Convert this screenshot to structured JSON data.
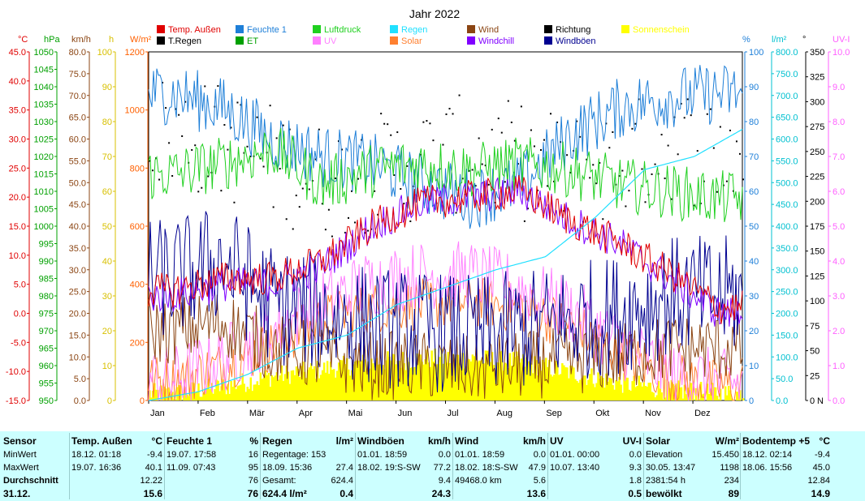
{
  "chart_data": {
    "type": "line",
    "title": "Jahr 2022",
    "months": [
      "Jan",
      "Feb",
      "Mär",
      "Apr",
      "Mai",
      "Jun",
      "Jul",
      "Aug",
      "Sep",
      "Okt",
      "Nov",
      "Dez"
    ],
    "legend": [
      {
        "label": "Temp. Außen",
        "color": "#e00000"
      },
      {
        "label": "T.Regen",
        "color": "#000000"
      },
      {
        "label": "Feuchte 1",
        "color": "#1e7fd8"
      },
      {
        "label": "ET",
        "color": "#00a000"
      },
      {
        "label": "Luftdruck",
        "color": "#20d020"
      },
      {
        "label": "UV",
        "color": "#ff80ff"
      },
      {
        "label": "Regen",
        "color": "#20e0ff"
      },
      {
        "label": "Solar",
        "color": "#ff8030"
      },
      {
        "label": "Wind",
        "color": "#8b4513"
      },
      {
        "label": "Windchill",
        "color": "#8000ff"
      },
      {
        "label": "Richtung",
        "color": "#000000"
      },
      {
        "label": "Windböen",
        "color": "#000090"
      },
      {
        "label": "Sonnenschein",
        "color": "#ffff00"
      }
    ],
    "left_axes": [
      {
        "unit": "°C",
        "color": "#e00000",
        "ticks": [
          "45.0",
          "40.0",
          "35.0",
          "30.0",
          "25.0",
          "20.0",
          "15.0",
          "10.0",
          "5.0",
          "0.0",
          "-5.0",
          "-10.0",
          "-15.0"
        ]
      },
      {
        "unit": "hPa",
        "color": "#00a000",
        "ticks": [
          "1050",
          "1045",
          "1040",
          "1035",
          "1030",
          "1025",
          "1020",
          "1015",
          "1010",
          "1005",
          "1000",
          "995",
          "990",
          "985",
          "980",
          "975",
          "970",
          "965",
          "960",
          "955",
          "950"
        ]
      },
      {
        "unit": "km/h",
        "color": "#8b4513",
        "ticks": [
          "80.0",
          "75.0",
          "70.0",
          "65.0",
          "60.0",
          "55.0",
          "50.0",
          "45.0",
          "40.0",
          "35.0",
          "30.0",
          "25.0",
          "20.0",
          "15.0",
          "10.0",
          "5.0",
          "0.0"
        ]
      },
      {
        "unit": "h",
        "color": "#d8c000",
        "ticks": [
          "100",
          "90",
          "80",
          "70",
          "60",
          "50",
          "40",
          "30",
          "20",
          "10",
          "0"
        ]
      },
      {
        "unit": "W/m²",
        "color": "#ff6000",
        "ticks": [
          "1200",
          "1000",
          "800",
          "600",
          "400",
          "200",
          "0"
        ]
      }
    ],
    "right_axes": [
      {
        "unit": "%",
        "color": "#1e7fd8",
        "ticks": [
          "100",
          "90",
          "80",
          "70",
          "60",
          "50",
          "40",
          "30",
          "20",
          "10",
          "0"
        ]
      },
      {
        "unit": "l/m²",
        "color": "#00c0d0",
        "ticks": [
          "800.0",
          "750.0",
          "700.0",
          "650.0",
          "600.0",
          "550.0",
          "500.0",
          "450.0",
          "400.0",
          "350.0",
          "300.0",
          "250.0",
          "200.0",
          "150.0",
          "100.0",
          "50.0",
          "0.0"
        ]
      },
      {
        "unit": "°",
        "color": "#000000",
        "ticks": [
          "350",
          "325",
          "300",
          "275",
          "250",
          "225",
          "200",
          "175",
          "150",
          "125",
          "100",
          "75",
          "50",
          "25",
          "0"
        ],
        "bottom_label": "N"
      },
      {
        "unit": "UV-I",
        "color": "#ff60ff",
        "ticks": [
          "10.0",
          "9.0",
          "8.0",
          "7.0",
          "6.0",
          "5.0",
          "4.0",
          "3.0",
          "2.0",
          "1.0",
          "0.0"
        ]
      }
    ],
    "series": [
      {
        "name": "Temp. Außen",
        "color": "#e00000",
        "axis": "°C",
        "monthly": [
          4,
          6,
          6,
          9,
          15,
          19,
          20,
          21,
          16,
          12,
          7,
          1
        ]
      },
      {
        "name": "Windchill",
        "color": "#8000ff",
        "axis": "°C",
        "monthly": [
          3,
          5,
          5,
          8,
          15,
          19,
          20,
          21,
          16,
          12,
          6,
          0
        ]
      },
      {
        "name": "Feuchte 1",
        "color": "#1e7fd8",
        "axis": "%",
        "monthly": [
          88,
          84,
          75,
          70,
          68,
          62,
          58,
          62,
          76,
          84,
          87,
          88
        ]
      },
      {
        "name": "Luftdruck",
        "color": "#20d020",
        "axis": "hPa",
        "monthly": [
          1015,
          1018,
          1022,
          1012,
          1016,
          1018,
          1016,
          1018,
          1016,
          1012,
          1010,
          1008
        ]
      },
      {
        "name": "Regen",
        "color": "#20e0ff",
        "axis": "l/m²",
        "monthly": [
          20,
          60,
          120,
          150,
          220,
          260,
          300,
          330,
          420,
          530,
          560,
          624.4
        ]
      },
      {
        "name": "Solar",
        "color": "#ff8030",
        "axis": "W/m²",
        "monthly": [
          70,
          120,
          190,
          280,
          320,
          330,
          340,
          320,
          260,
          160,
          80,
          50
        ]
      },
      {
        "name": "UV",
        "color": "#ff80ff",
        "axis": "UV-I",
        "monthly": [
          0.6,
          1.2,
          2.0,
          2.8,
          3.4,
          3.6,
          3.6,
          3.2,
          2.6,
          1.6,
          0.8,
          0.5
        ]
      },
      {
        "name": "Wind",
        "color": "#8b4513",
        "axis": "km/h",
        "monthly": [
          16,
          18,
          12,
          10,
          8,
          8,
          7,
          8,
          9,
          10,
          12,
          12
        ]
      },
      {
        "name": "Windböen",
        "color": "#000090",
        "axis": "km/h",
        "monthly": [
          28,
          32,
          22,
          20,
          17,
          16,
          15,
          16,
          18,
          20,
          24,
          24
        ]
      },
      {
        "name": "Richtung",
        "color": "#000000",
        "axis": "°",
        "monthly": [
          270,
          260,
          240,
          220,
          230,
          240,
          250,
          240,
          230,
          240,
          260,
          250
        ]
      },
      {
        "name": "Sonnenschein",
        "color": "#ffff00",
        "axis": "h",
        "monthly": [
          2,
          4,
          7,
          9,
          11,
          12,
          12,
          11,
          8,
          5,
          3,
          2
        ]
      }
    ]
  },
  "summary": {
    "sensor": {
      "title": "Sensor",
      "rows": [
        "MinWert",
        "MaxWert",
        "Durchschnitt"
      ],
      "last": "31.12."
    },
    "temp": {
      "title": "Temp. Außen",
      "unit": "°C",
      "rows": [
        [
          "18.12.  01:18",
          "-9.4"
        ],
        [
          "19.07.  16:36",
          "40.1"
        ],
        [
          "",
          "12.22"
        ]
      ],
      "last": "15.6"
    },
    "feuchte": {
      "title": "Feuchte 1",
      "unit": "%",
      "rows": [
        [
          "19.07.  17:58",
          "16"
        ],
        [
          "11.09.  07:43",
          "95"
        ],
        [
          "",
          "76"
        ]
      ],
      "last": "76"
    },
    "regen": {
      "title": "Regen",
      "unit": "l/m²",
      "rows": [
        [
          "Regentage: 153",
          ""
        ],
        [
          "18.09.  15:36",
          "27.4"
        ],
        [
          "Gesamt:",
          "624.4"
        ]
      ],
      "last_left": "624.4 l/m²",
      "last": "0.4"
    },
    "windboeen": {
      "title": "Windböen",
      "unit": "km/h",
      "rows": [
        [
          "01.01.  18:59",
          "0.0"
        ],
        [
          "18.02.  19:S-SW",
          "77.2"
        ],
        [
          "",
          "9.4"
        ]
      ],
      "last": "24.3"
    },
    "wind": {
      "title": "Wind",
      "unit": "km/h",
      "rows": [
        [
          "01.01.  18:59",
          "0.0"
        ],
        [
          "18.02.  18:S-SW",
          "47.9"
        ],
        [
          "49468.0 km",
          "5.6"
        ]
      ],
      "last": "13.6"
    },
    "uv": {
      "title": "UV",
      "unit": "UV-I",
      "rows": [
        [
          "01.01.  00:00",
          "0.0"
        ],
        [
          "10.07.  13:40",
          "9.3"
        ],
        [
          "",
          "1.8"
        ]
      ],
      "last": "0.5"
    },
    "solar": {
      "title": "Solar",
      "unit": "W/m²",
      "rows": [
        [
          "Elevation",
          "15.450"
        ],
        [
          "30.05.  13:47",
          "1198"
        ],
        [
          "2381:54 h",
          "234"
        ]
      ],
      "last_left": "bewölkt",
      "last": "89"
    },
    "boden": {
      "title": "Bodentemp +5",
      "unit": "°C",
      "rows": [
        [
          "18.12.  02:14",
          "-9.4"
        ],
        [
          "18.06.  15:56",
          "45.0"
        ],
        [
          "",
          "12.84"
        ]
      ],
      "last": "14.9"
    }
  }
}
